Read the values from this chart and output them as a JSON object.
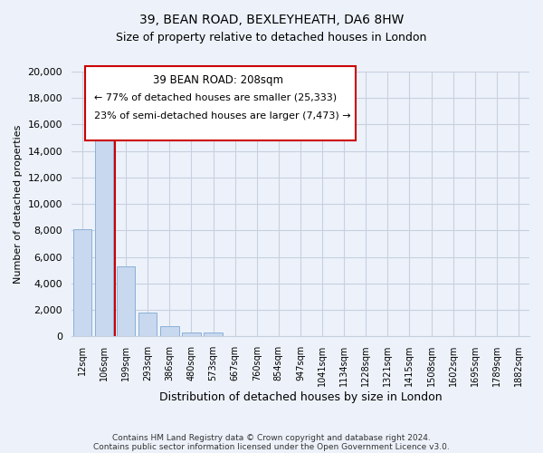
{
  "title": "39, BEAN ROAD, BEXLEYHEATH, DA6 8HW",
  "subtitle": "Size of property relative to detached houses in London",
  "xlabel": "Distribution of detached houses by size in London",
  "ylabel": "Number of detached properties",
  "bar_labels": [
    "12sqm",
    "106sqm",
    "199sqm",
    "293sqm",
    "386sqm",
    "480sqm",
    "573sqm",
    "667sqm",
    "760sqm",
    "854sqm",
    "947sqm",
    "1041sqm",
    "1134sqm",
    "1228sqm",
    "1321sqm",
    "1415sqm",
    "1508sqm",
    "1602sqm",
    "1695sqm",
    "1789sqm",
    "1882sqm"
  ],
  "bar_values": [
    8100,
    16500,
    5300,
    1800,
    800,
    300,
    300,
    0,
    0,
    0,
    0,
    0,
    0,
    0,
    0,
    0,
    0,
    0,
    0,
    0,
    0
  ],
  "bar_color": "#c8d8ee",
  "bar_edge_color": "#8ab0d8",
  "ylim": [
    0,
    20000
  ],
  "yticks": [
    0,
    2000,
    4000,
    6000,
    8000,
    10000,
    12000,
    14000,
    16000,
    18000,
    20000
  ],
  "property_line_x": 1.5,
  "property_line_color": "#cc0000",
  "annotation_title": "39 BEAN ROAD: 208sqm",
  "annotation_line1": "← 77% of detached houses are smaller (25,333)",
  "annotation_line2": "23% of semi-detached houses are larger (7,473) →",
  "annotation_box_color": "#cc0000",
  "footer_line1": "Contains HM Land Registry data © Crown copyright and database right 2024.",
  "footer_line2": "Contains public sector information licensed under the Open Government Licence v3.0.",
  "background_color": "#edf2fa",
  "grid_color": "#c8d0e0",
  "title_fontsize": 10,
  "subtitle_fontsize": 9
}
